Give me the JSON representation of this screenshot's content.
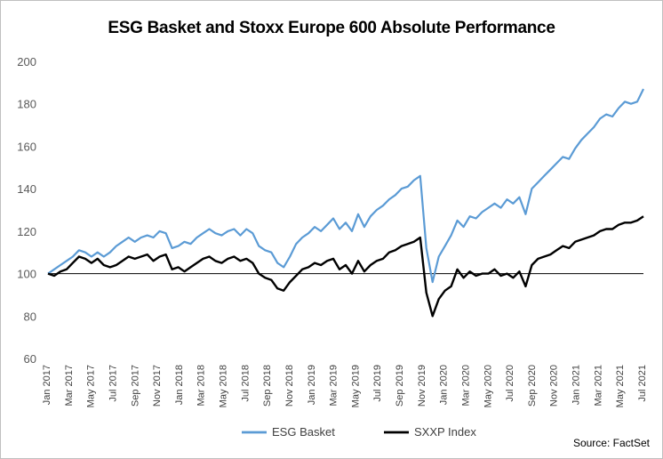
{
  "chart_data": {
    "type": "line",
    "title": "ESG Basket and Stoxx Europe 600 Absolute Performance",
    "xlabel": "",
    "ylabel": "",
    "ylim": [
      60,
      200
    ],
    "yticks": [
      60,
      80,
      100,
      120,
      140,
      160,
      180,
      200
    ],
    "x_tick_labels": [
      "Jan 2017",
      "Mar 2017",
      "May 2017",
      "Jul 2017",
      "Sep 2017",
      "Nov 2017",
      "Jan 2018",
      "Mar 2018",
      "May 2018",
      "Jul 2018",
      "Sep 2018",
      "Nov 2018",
      "Jan 2019",
      "Mar 2019",
      "May 2019",
      "Jul 2019",
      "Sep 2019",
      "Nov 2019",
      "Jan 2020",
      "Mar 2020",
      "May 2020",
      "Jul 2020",
      "Sep 2020",
      "Nov 2020",
      "Jan 2021",
      "Mar 2021",
      "May 2021",
      "Jul 2021"
    ],
    "reference_line": 100,
    "grid": false,
    "legend": "bottom",
    "series": [
      {
        "name": "ESG Basket",
        "color": "#5b9bd5",
        "values": [
          [
            0,
            100
          ],
          [
            1,
            102
          ],
          [
            2,
            104
          ],
          [
            3,
            106
          ],
          [
            4,
            108
          ],
          [
            5,
            111
          ],
          [
            6,
            110
          ],
          [
            7,
            108
          ],
          [
            8,
            110
          ],
          [
            9,
            108
          ],
          [
            10,
            110
          ],
          [
            11,
            113
          ],
          [
            12,
            115
          ],
          [
            13,
            117
          ],
          [
            14,
            115
          ],
          [
            15,
            117
          ],
          [
            16,
            118
          ],
          [
            17,
            117
          ],
          [
            18,
            120
          ],
          [
            19,
            119
          ],
          [
            20,
            112
          ],
          [
            21,
            113
          ],
          [
            22,
            115
          ],
          [
            23,
            114
          ],
          [
            24,
            117
          ],
          [
            25,
            119
          ],
          [
            26,
            121
          ],
          [
            27,
            119
          ],
          [
            28,
            118
          ],
          [
            29,
            120
          ],
          [
            30,
            121
          ],
          [
            31,
            118
          ],
          [
            32,
            121
          ],
          [
            33,
            119
          ],
          [
            34,
            113
          ],
          [
            35,
            111
          ],
          [
            36,
            110
          ],
          [
            37,
            105
          ],
          [
            38,
            103
          ],
          [
            39,
            108
          ],
          [
            40,
            114
          ],
          [
            41,
            117
          ],
          [
            42,
            119
          ],
          [
            43,
            122
          ],
          [
            44,
            120
          ],
          [
            45,
            123
          ],
          [
            46,
            126
          ],
          [
            47,
            121
          ],
          [
            48,
            124
          ],
          [
            49,
            120
          ],
          [
            50,
            128
          ],
          [
            51,
            122
          ],
          [
            52,
            127
          ],
          [
            53,
            130
          ],
          [
            54,
            132
          ],
          [
            55,
            135
          ],
          [
            56,
            137
          ],
          [
            57,
            140
          ],
          [
            58,
            141
          ],
          [
            59,
            144
          ],
          [
            60,
            146
          ],
          [
            61,
            112
          ],
          [
            62,
            96
          ],
          [
            63,
            108
          ],
          [
            64,
            113
          ],
          [
            65,
            118
          ],
          [
            66,
            125
          ],
          [
            67,
            122
          ],
          [
            68,
            127
          ],
          [
            69,
            126
          ],
          [
            70,
            129
          ],
          [
            71,
            131
          ],
          [
            72,
            133
          ],
          [
            73,
            131
          ],
          [
            74,
            135
          ],
          [
            75,
            133
          ],
          [
            76,
            136
          ],
          [
            77,
            128
          ],
          [
            78,
            140
          ],
          [
            79,
            143
          ],
          [
            80,
            146
          ],
          [
            81,
            149
          ],
          [
            82,
            152
          ],
          [
            83,
            155
          ],
          [
            84,
            154
          ],
          [
            85,
            159
          ],
          [
            86,
            163
          ],
          [
            87,
            166
          ],
          [
            88,
            169
          ],
          [
            89,
            173
          ],
          [
            90,
            175
          ],
          [
            91,
            174
          ],
          [
            92,
            178
          ],
          [
            93,
            181
          ],
          [
            94,
            180
          ],
          [
            95,
            181
          ],
          [
            96,
            187
          ]
        ]
      },
      {
        "name": "SXXP Index",
        "color": "#000000",
        "values": [
          [
            0,
            100
          ],
          [
            1,
            99
          ],
          [
            2,
            101
          ],
          [
            3,
            102
          ],
          [
            4,
            105
          ],
          [
            5,
            108
          ],
          [
            6,
            107
          ],
          [
            7,
            105
          ],
          [
            8,
            107
          ],
          [
            9,
            104
          ],
          [
            10,
            103
          ],
          [
            11,
            104
          ],
          [
            12,
            106
          ],
          [
            13,
            108
          ],
          [
            14,
            107
          ],
          [
            15,
            108
          ],
          [
            16,
            109
          ],
          [
            17,
            106
          ],
          [
            18,
            108
          ],
          [
            19,
            109
          ],
          [
            20,
            102
          ],
          [
            21,
            103
          ],
          [
            22,
            101
          ],
          [
            23,
            103
          ],
          [
            24,
            105
          ],
          [
            25,
            107
          ],
          [
            26,
            108
          ],
          [
            27,
            106
          ],
          [
            28,
            105
          ],
          [
            29,
            107
          ],
          [
            30,
            108
          ],
          [
            31,
            106
          ],
          [
            32,
            107
          ],
          [
            33,
            105
          ],
          [
            34,
            100
          ],
          [
            35,
            98
          ],
          [
            36,
            97
          ],
          [
            37,
            93
          ],
          [
            38,
            92
          ],
          [
            39,
            96
          ],
          [
            40,
            99
          ],
          [
            41,
            102
          ],
          [
            42,
            103
          ],
          [
            43,
            105
          ],
          [
            44,
            104
          ],
          [
            45,
            106
          ],
          [
            46,
            107
          ],
          [
            47,
            102
          ],
          [
            48,
            104
          ],
          [
            49,
            100
          ],
          [
            50,
            106
          ],
          [
            51,
            101
          ],
          [
            52,
            104
          ],
          [
            53,
            106
          ],
          [
            54,
            107
          ],
          [
            55,
            110
          ],
          [
            56,
            111
          ],
          [
            57,
            113
          ],
          [
            58,
            114
          ],
          [
            59,
            115
          ],
          [
            60,
            117
          ],
          [
            61,
            91
          ],
          [
            62,
            80
          ],
          [
            63,
            88
          ],
          [
            64,
            92
          ],
          [
            65,
            94
          ],
          [
            66,
            102
          ],
          [
            67,
            98
          ],
          [
            68,
            101
          ],
          [
            69,
            99
          ],
          [
            70,
            100
          ],
          [
            71,
            100
          ],
          [
            72,
            102
          ],
          [
            73,
            99
          ],
          [
            74,
            100
          ],
          [
            75,
            98
          ],
          [
            76,
            101
          ],
          [
            77,
            94
          ],
          [
            78,
            104
          ],
          [
            79,
            107
          ],
          [
            80,
            108
          ],
          [
            81,
            109
          ],
          [
            82,
            111
          ],
          [
            83,
            113
          ],
          [
            84,
            112
          ],
          [
            85,
            115
          ],
          [
            86,
            116
          ],
          [
            87,
            117
          ],
          [
            88,
            118
          ],
          [
            89,
            120
          ],
          [
            90,
            121
          ],
          [
            91,
            121
          ],
          [
            92,
            123
          ],
          [
            93,
            124
          ],
          [
            94,
            124
          ],
          [
            95,
            125
          ],
          [
            96,
            127
          ]
        ]
      }
    ]
  },
  "source": "Source: FactSet"
}
